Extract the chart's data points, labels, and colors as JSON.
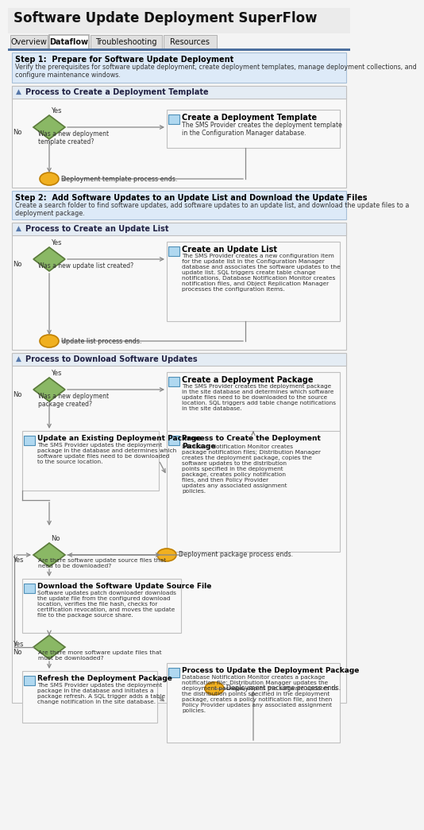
{
  "title": "Software Update Deployment SuperFlow",
  "tabs": [
    "Overview",
    "Dataflow",
    "Troubleshooting",
    "Resources"
  ],
  "active_tab": "Dataflow",
  "step1_header": "Step 1:  Prepare for Software Update Deployment",
  "step1_desc": "Verify the prerequisites for software update deployment, create deployment templates, manage deployment collections, and\nconfigure maintenance windows.",
  "sec1_title": "Process to Create a Deployment Template",
  "sec1_diamond": "Was a new deployment\ntemplate created?",
  "sec1_box_title": "Create a Deployment Template",
  "sec1_box_desc": "The SMS Provider creates the deployment template\nin the Configuration Manager database.",
  "sec1_end": "Deployment template process ends.",
  "step2_header": "Step 2:  Add Software Updates to an Update List and Download the Update Files",
  "step2_desc": "Create a search folder to find software updates, add software updates to an update list, and download the update files to a\ndeployment package.",
  "sec2_title": "Process to Create an Update List",
  "sec2_diamond": "Was a new update list created?",
  "sec2_box_title": "Create an Update List",
  "sec2_box_desc": "The SMS Provider creates a new configuration item\nfor the update list in the Configuration Manager\ndatabase and associates the software updates to the\nupdate list. SQL triggers create table change\nnotifications, Database Notification Monitor creates\nnotification files, and Object Replication Manager\nprocesses the configuration items.",
  "sec2_end": "Update list process ends.",
  "sec3_title": "Process to Download Software Updates",
  "sec3_d1": "Was a new deployment\npackage created?",
  "sec3_box1_title": "Create a Deployment Package",
  "sec3_box1_desc": "The SMS Provider creates the deployment package\nin the site database and determines which software\nupdate files need to be downloaded to the source\nlocation. SQL triggers add table change notifications\nin the site database.",
  "sec3_box2_title": "Update an Existing Deployment Package",
  "sec3_box2_desc": "The SMS Provider updates the deployment\npackage in the database and determines which\nsoftware update files need to be downloaded\nto the source location.",
  "sec3_box3_title": "Process to Create the Deployment\nPackage",
  "sec3_box3_desc": "Database Notification Monitor creates\npackage notification files; Distribution Manager\ncreates the deployment package, copies the\nsoftware updates to the distribution\npoints specified in the deployment\npackage, creates policy notification\nfiles, and then Policy Provider\nupdates any associated assignment\npolicies.",
  "sec3_d2": "Are there software update source files that\nneed to be downloaded?",
  "sec3_end2": "Deployment package process ends.",
  "sec3_box4_title": "Download the Software Update Source File",
  "sec3_box4_desc": "Software updates patch downloader downloads\nthe update file from the configured download\nlocation, verifies the file hash, checks for\ncertification revocation, and moves the update\nfile to the package source share.",
  "sec3_d3": "Are there more software update files that\nmust be downloaded?",
  "sec3_box5_title": "Refresh the Deployment Package",
  "sec3_box5_desc": "The SMS Provider updates the deployment\npackage in the database and initiates a\npackage refresh. A SQL trigger adds a table\nchange notification in the site database.",
  "sec3_box6_title": "Process to Update the Deployment Package",
  "sec3_box6_desc": "Database Notification Monitor creates a package\nnotification file; Distribution Manager updates the\ndeployment package, copies the software updates to\nthe distribution points specified in the deployment\npackage, creates a policy notification file, and then\nPolicy Provider updates any associated assignment\npolicies.",
  "sec3_end3": "Deployment package process ends.",
  "c_page_bg": "#f4f4f4",
  "c_white": "#ffffff",
  "c_step_bg": "#ddeaf8",
  "c_step_ec": "#a8c0d8",
  "c_sec_bg": "#f8f8f8",
  "c_sec_ec": "#c0c0c0",
  "c_sec_hdr_bg": "#e4ecf4",
  "c_diamond_fc": "#8ab865",
  "c_diamond_ec": "#5a7a3a",
  "c_box_fc": "#b0d8f0",
  "c_box_ec": "#5090b8",
  "c_end_fc": "#f0b020",
  "c_end_ec": "#c08000",
  "c_arrow": "#888888",
  "c_title_text": "#111111",
  "c_text": "#333333",
  "c_bold_text": "#000000",
  "c_sec_hdr_text": "#222244",
  "c_tab_line": "#4a6fa0"
}
